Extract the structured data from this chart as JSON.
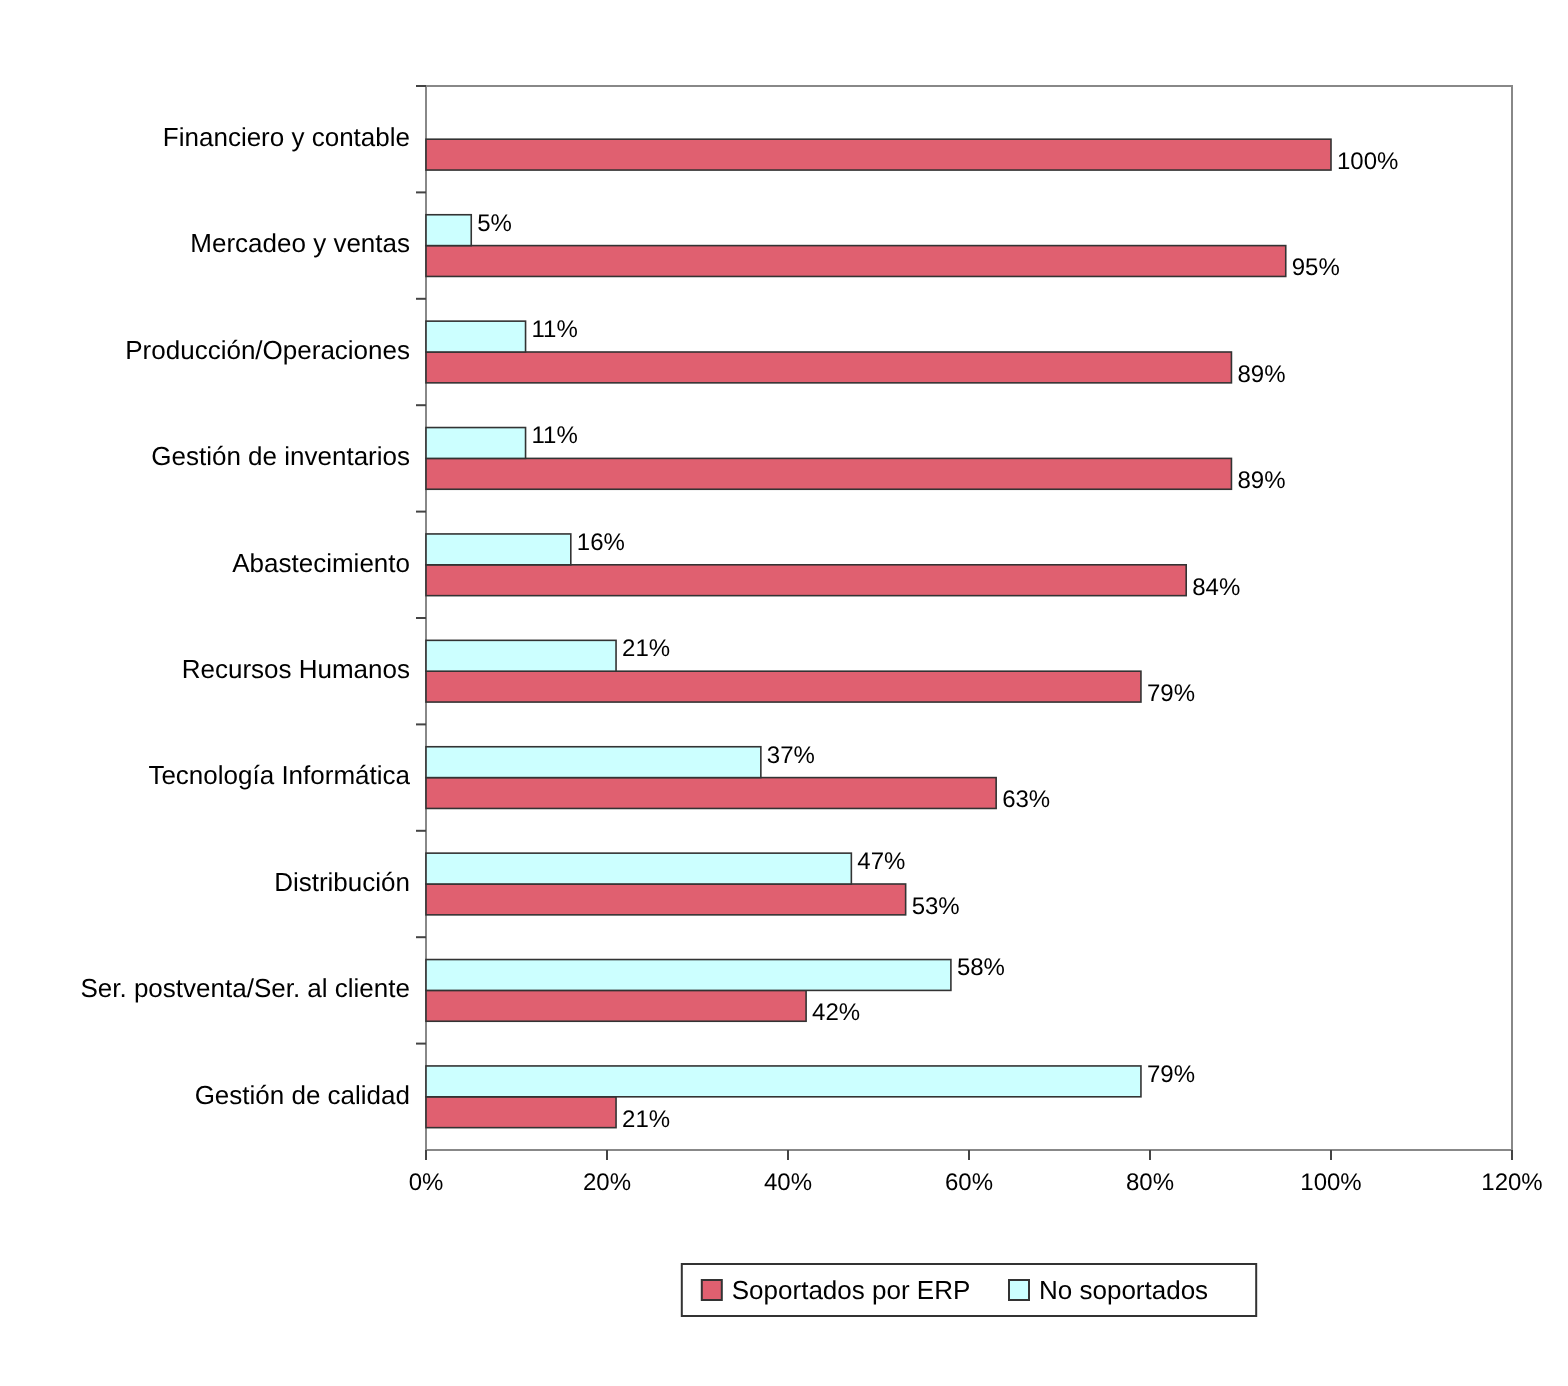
{
  "chart_data": {
    "type": "bar",
    "orientation": "horizontal",
    "categories": [
      "Financiero y contable",
      "Mercadeo y ventas",
      "Producción/Operaciones",
      "Gestión de inventarios",
      "Abastecimiento",
      "Recursos Humanos",
      "Tecnología Informática",
      "Distribución",
      "Ser. postventa/Ser. al cliente",
      "Gestión de calidad"
    ],
    "series": [
      {
        "name": "Soportados por ERP",
        "color": "#e06070",
        "values": [
          100,
          95,
          89,
          89,
          84,
          79,
          63,
          53,
          42,
          21
        ],
        "value_labels": [
          "100%",
          "95%",
          "89%",
          "89%",
          "84%",
          "79%",
          "63%",
          "53%",
          "42%",
          "21%"
        ]
      },
      {
        "name": "No soportados",
        "color": "#ccffff",
        "values": [
          null,
          5,
          11,
          11,
          16,
          21,
          37,
          47,
          58,
          79
        ],
        "value_labels": [
          null,
          "5%",
          "11%",
          "11%",
          "16%",
          "21%",
          "37%",
          "47%",
          "58%",
          "79%"
        ]
      }
    ],
    "xlim": [
      0,
      120
    ],
    "xticks": [
      {
        "value": 0,
        "label": "0%"
      },
      {
        "value": 20,
        "label": "20%"
      },
      {
        "value": 40,
        "label": "40%"
      },
      {
        "value": 60,
        "label": "60%"
      },
      {
        "value": 80,
        "label": "80%"
      },
      {
        "value": 100,
        "label": "100%"
      },
      {
        "value": 120,
        "label": "120%"
      }
    ],
    "grid": false,
    "legend": "bottom"
  }
}
